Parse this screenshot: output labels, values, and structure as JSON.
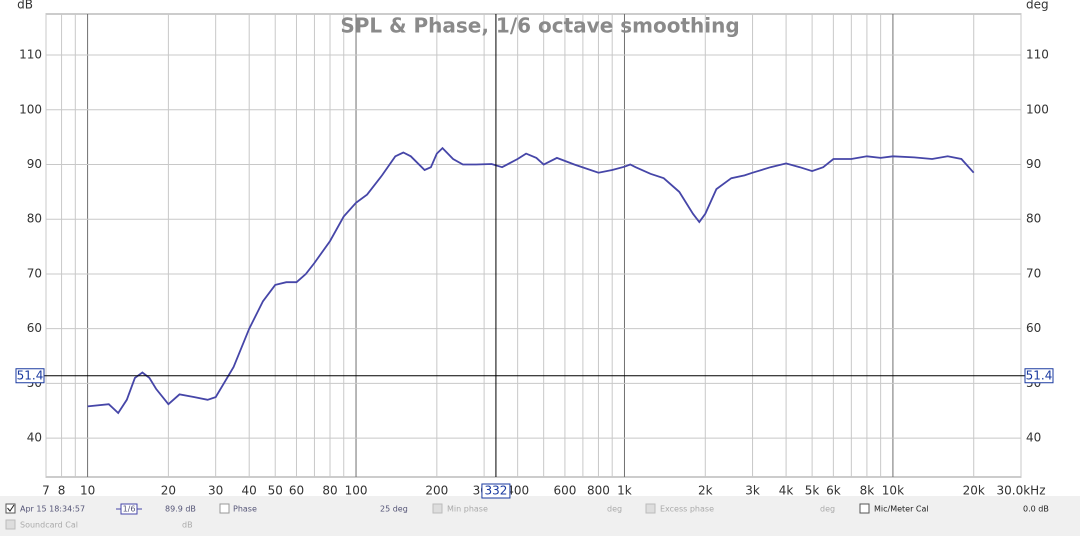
{
  "chart_data": {
    "type": "line",
    "title": "SPL & Phase, 1/6 octave smoothing",
    "y_label": "dB",
    "y2_label": "deg",
    "log_x": true,
    "grid": true,
    "x": [
      10,
      12,
      13,
      14,
      15,
      16,
      17,
      18,
      20,
      22,
      25,
      28,
      30,
      35,
      40,
      45,
      50,
      55,
      60,
      65,
      70,
      80,
      90,
      100,
      110,
      125,
      140,
      150,
      160,
      180,
      190,
      200,
      210,
      230,
      250,
      280,
      320,
      350,
      400,
      430,
      470,
      500,
      560,
      650,
      800,
      900,
      1000,
      1050,
      1100,
      1250,
      1400,
      1600,
      1800,
      1900,
      2000,
      2200,
      2500,
      2800,
      3000,
      3500,
      4000,
      4500,
      5000,
      5500,
      6000,
      7000,
      8000,
      9000,
      10000,
      12000,
      14000,
      16000,
      18000,
      20000
    ],
    "series": [
      {
        "name": "Apr 15 18:34:57",
        "color": "#4646a8",
        "values": [
          45.8,
          46.2,
          44.6,
          47,
          51,
          52,
          51,
          49,
          46.2,
          48,
          47.5,
          47,
          47.5,
          53,
          60,
          65,
          68,
          68.5,
          68.5,
          70,
          72,
          76,
          80.5,
          83,
          84.5,
          88,
          91.5,
          92.2,
          91.5,
          89,
          89.5,
          92,
          93,
          91,
          90,
          90,
          90.1,
          89.5,
          91,
          92,
          91.2,
          90,
          91.2,
          90,
          88.5,
          89,
          89.6,
          90,
          89.5,
          88.3,
          87.5,
          85,
          81,
          79.5,
          81,
          85.5,
          87.5,
          88,
          88.5,
          89.5,
          90.2,
          89.5,
          88.8,
          89.5,
          91,
          91,
          91.5,
          91.2,
          91.5,
          91.3,
          91,
          91.5,
          91,
          88.5
        ]
      }
    ],
    "xlim": [
      7,
      30000
    ],
    "ylim": [
      32.9,
      117.5
    ],
    "y2lim": [
      32.9,
      117.5
    ],
    "xticks": [
      7,
      8,
      10,
      20,
      30,
      40,
      50,
      60,
      80,
      100,
      200,
      300,
      400,
      600,
      800,
      {
        "value": 1000,
        "label": "1k"
      },
      {
        "value": 2000,
        "label": "2k"
      },
      {
        "value": 3000,
        "label": "3k"
      },
      {
        "value": 4000,
        "label": "4k"
      },
      {
        "value": 5000,
        "label": "5k"
      },
      {
        "value": 6000,
        "label": "6k"
      },
      {
        "value": 8000,
        "label": "8k"
      },
      {
        "value": 10000,
        "label": "10k"
      },
      {
        "value": 20000,
        "label": "20k"
      },
      {
        "value": 30000,
        "label": "30.0kHz"
      }
    ],
    "xminor": [
      9,
      70,
      90,
      500,
      700,
      900,
      7000,
      9000
    ],
    "yticks": [
      40,
      50,
      60,
      70,
      80,
      90,
      100,
      110
    ],
    "y2ticks": [
      40,
      50,
      60,
      70,
      80,
      90,
      100,
      110
    ],
    "cursor": {
      "x": 332,
      "y": 51.4
    }
  },
  "legend_bar": {
    "smoothing": "1/6",
    "level": "89.9 dB",
    "phase": "Phase",
    "phase_value": "25 deg",
    "min_phase": "Min phase",
    "min_phase_unit": "deg",
    "excess_phase": "Excess phase",
    "excess_phase_unit": "deg",
    "mic_cal": "Mic/Meter Cal",
    "mic_cal_value": "0.0 dB",
    "soundcard_cal": "Soundcard Cal",
    "soundcard_cal_unit": "dB"
  }
}
